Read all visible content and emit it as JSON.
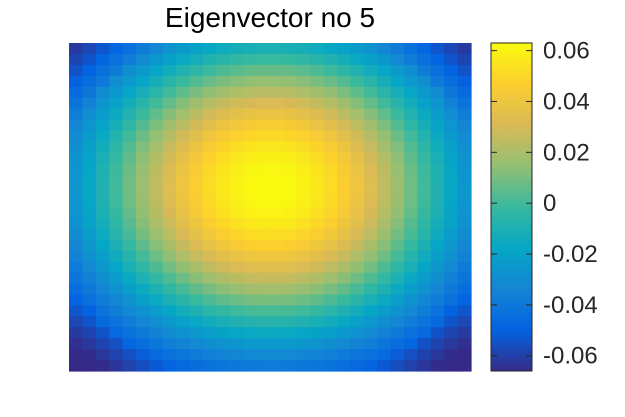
{
  "chart_data": {
    "type": "heatmap",
    "title": "Eigenvector no 5",
    "xlabel": "",
    "ylabel": "",
    "grid_size": 30,
    "colormap": "parula",
    "colorbar": {
      "position": "right",
      "range": [
        -0.066,
        0.063
      ],
      "ticks": [
        0.06,
        0.04,
        0.02,
        0,
        -0.02,
        -0.04,
        -0.06
      ],
      "tick_labels": [
        "0.06",
        "0.04",
        "0.02",
        "0",
        "-0.02",
        "-0.04",
        "-0.06"
      ]
    },
    "axes_visible": false,
    "values_description": "peak ~0.063 at centre (slightly above middle), minima ~-0.066 at the four corners"
  },
  "colors": {
    "parula": [
      "#352A87",
      "#0363E1",
      "#1485D4",
      "#06A7C6",
      "#38B99E",
      "#92BF73",
      "#D9BA56",
      "#FCCE2E",
      "#F9FB0E"
    ]
  }
}
